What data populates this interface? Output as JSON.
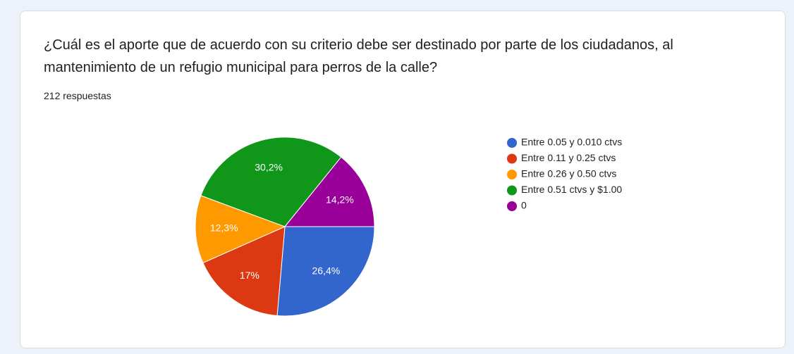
{
  "chart_data": {
    "type": "pie",
    "title": "¿Cuál es el aporte que de acuerdo con su criterio debe ser destinado por parte de los ciudadanos, al mantenimiento de un refugio municipal para perros de la calle?",
    "subtitle": "212 respuestas",
    "categories": [
      "Entre 0.05 y 0.010 ctvs",
      "Entre 0.11 y 0.25 ctvs",
      "Entre 0.26 y 0.50 ctvs",
      "Entre 0.51 ctvs y $1.00",
      "0"
    ],
    "values": [
      26.4,
      17,
      12.3,
      30.2,
      14.2
    ],
    "value_labels": [
      "26,4%",
      "17%",
      "12,3%",
      "30,2%",
      "14,2%"
    ],
    "colors": [
      "#3366cc",
      "#dc3912",
      "#ff9900",
      "#109618",
      "#990099"
    ],
    "legend": "right"
  }
}
